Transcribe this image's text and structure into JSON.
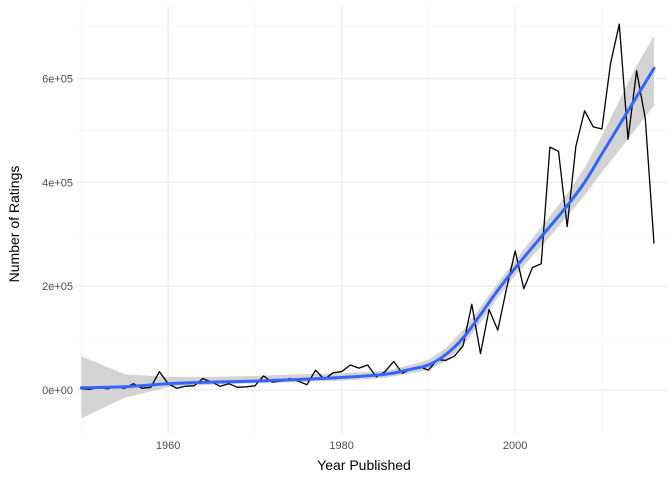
{
  "chart_data": {
    "type": "line",
    "title": "",
    "xlabel": "Year Published",
    "ylabel": "Number of Ratings",
    "xlim": [
      1949.5,
      2017.5
    ],
    "ylim": [
      -85000,
      740000
    ],
    "x_ticks": [
      1960,
      1980,
      2000
    ],
    "x_tick_labels": [
      "1960",
      "1980",
      "2000"
    ],
    "y_ticks": [
      0,
      200000,
      400000,
      600000
    ],
    "y_tick_labels": [
      "0e+00",
      "2e+05",
      "4e+05",
      "6e+05"
    ],
    "grid": true,
    "legend": "none",
    "colors": {
      "line": "#000000",
      "smooth": "#3366ff",
      "ribbon": "#d3d3d3",
      "grid_major": "#ebebeb",
      "grid_minor": "#f5f5f5"
    },
    "series": [
      {
        "type": "line",
        "x": [
          1950,
          1951,
          1952,
          1953,
          1954,
          1955,
          1956,
          1957,
          1958,
          1959,
          1960,
          1961,
          1962,
          1963,
          1964,
          1965,
          1966,
          1967,
          1968,
          1969,
          1970,
          1971,
          1972,
          1973,
          1974,
          1975,
          1976,
          1977,
          1978,
          1979,
          1980,
          1981,
          1982,
          1983,
          1984,
          1985,
          1986,
          1987,
          1988,
          1989,
          1990,
          1991,
          1992,
          1993,
          1994,
          1995,
          1996,
          1997,
          1998,
          1999,
          2000,
          2001,
          2002,
          2003,
          2004,
          2005,
          2006,
          2007,
          2008,
          2009,
          2010,
          2011,
          2012,
          2013,
          2014,
          2015,
          2016
        ],
        "y": [
          2000,
          1000,
          5000,
          2000,
          6000,
          3000,
          12000,
          3000,
          5000,
          35000,
          12000,
          3000,
          7000,
          8000,
          22000,
          15000,
          7000,
          12000,
          5000,
          6000,
          8000,
          27000,
          15000,
          17000,
          22000,
          17000,
          10000,
          38000,
          20000,
          33000,
          35000,
          48000,
          42000,
          48000,
          25000,
          35000,
          55000,
          32000,
          40000,
          45000,
          38000,
          58000,
          57000,
          65000,
          85000,
          165000,
          70000,
          155000,
          115000,
          195000,
          268000,
          195000,
          236000,
          243000,
          468000,
          460000,
          315000,
          470000,
          538000,
          507000,
          503000,
          630000,
          705000,
          483000,
          615000,
          523000,
          282000
        ]
      },
      {
        "type": "smooth",
        "x": [
          1950,
          1955,
          1960,
          1965,
          1970,
          1975,
          1980,
          1985,
          1988,
          1990,
          1992,
          1994,
          1996,
          1998,
          2000,
          2002,
          2004,
          2006,
          2008,
          2010,
          2012,
          2014,
          2016
        ],
        "y": [
          4000,
          6000,
          12000,
          15000,
          17000,
          20000,
          24000,
          30000,
          40000,
          48000,
          68000,
          100000,
          145000,
          192000,
          235000,
          275000,
          315000,
          355000,
          400000,
          455000,
          510000,
          565000,
          620000
        ],
        "ymin": [
          -55000,
          -15000,
          5000,
          10000,
          13000,
          15000,
          18000,
          23000,
          32000,
          38000,
          55000,
          85000,
          130000,
          178000,
          220000,
          258000,
          295000,
          335000,
          375000,
          420000,
          462000,
          505000,
          548000
        ],
        "ymax": [
          65000,
          30000,
          25000,
          25000,
          27000,
          30000,
          32000,
          37000,
          48000,
          58000,
          80000,
          115000,
          160000,
          206000,
          250000,
          292000,
          335000,
          378000,
          428000,
          490000,
          558000,
          625000,
          683000
        ]
      }
    ]
  }
}
